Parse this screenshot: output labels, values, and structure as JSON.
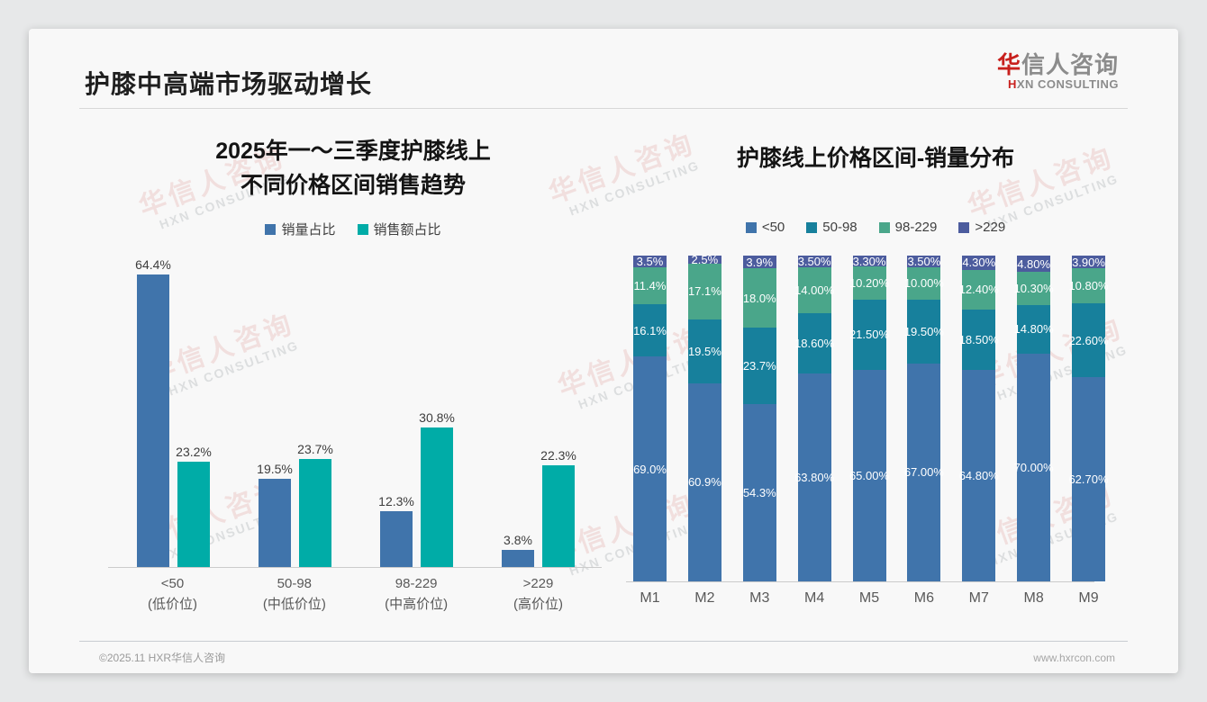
{
  "page": {
    "title": "护膝中高端市场驱动增长",
    "logo": {
      "cn_first": "华",
      "cn_rest": "信人咨询",
      "en_first": "H",
      "en_rest": "XN CONSULTING"
    },
    "watermark": {
      "cn": "华信人咨询",
      "en": "HXN CONSULTING"
    },
    "footer": {
      "copyright": "©2025.11 HXR华信人咨询",
      "website": "www.hxrcon.com"
    }
  },
  "colors": {
    "volume_blue": "#4074ab",
    "amount_teal": "#00aca7",
    "seg_lt50": "#4074ab",
    "seg_50_98": "#17809c",
    "seg_98_229": "#4aa68a",
    "seg_gt229": "#4c5c9e",
    "axis_gray": "#cbcbcb"
  },
  "chart_data": [
    {
      "type": "bar",
      "title": "2025年一～三季度护膝线上 不同价格区间销售趋势",
      "title_lines": [
        "2025年一～三季度护膝线上",
        "不同价格区间销售趋势"
      ],
      "categories": [
        "<50",
        "50-98",
        "98-229",
        ">229"
      ],
      "category_sublabels": [
        "(低价位)",
        "(中低价位)",
        "(中高价位)",
        "(高价位)"
      ],
      "unit": "%",
      "ylim": [
        0,
        70
      ],
      "grid": false,
      "legend_position": "top",
      "series": [
        {
          "name": "销量占比",
          "color": "#4074ab",
          "values": [
            64.4,
            19.5,
            12.3,
            3.8
          ],
          "labels": [
            "64.4%",
            "19.5%",
            "12.3%",
            "3.8%"
          ]
        },
        {
          "name": "销售额占比",
          "color": "#00aca7",
          "values": [
            23.2,
            23.7,
            30.8,
            22.3
          ],
          "labels": [
            "23.2%",
            "23.7%",
            "30.8%",
            "22.3%"
          ]
        }
      ]
    },
    {
      "type": "stacked-bar",
      "title": "护膝线上价格区间-销量分布",
      "categories": [
        "M1",
        "M2",
        "M3",
        "M4",
        "M5",
        "M6",
        "M7",
        "M8",
        "M9"
      ],
      "unit": "%",
      "ylim": [
        0,
        100
      ],
      "grid": false,
      "legend_position": "top",
      "series": [
        {
          "name": "<50",
          "color": "#4074ab",
          "values": [
            69.0,
            60.9,
            54.3,
            63.8,
            65.0,
            67.0,
            64.8,
            70.0,
            62.7
          ],
          "labels": [
            "69.0%",
            "60.9%",
            "54.3%",
            "63.80%",
            "65.00%",
            "67.00%",
            "64.80%",
            "70.00%",
            "62.70%"
          ]
        },
        {
          "name": "50-98",
          "color": "#17809c",
          "values": [
            16.1,
            19.5,
            23.7,
            18.6,
            21.5,
            19.5,
            18.5,
            14.8,
            22.6
          ],
          "labels": [
            "16.1%",
            "19.5%",
            "23.7%",
            "18.60%",
            "21.50%",
            "19.50%",
            "18.50%",
            "14.80%",
            "22.60%"
          ]
        },
        {
          "name": "98-229",
          "color": "#4aa68a",
          "values": [
            11.4,
            17.1,
            18.0,
            14.0,
            10.2,
            10.0,
            12.4,
            10.3,
            10.8
          ],
          "labels": [
            "11.4%",
            "17.1%",
            "18.0%",
            "14.00%",
            "10.20%",
            "10.00%",
            "12.40%",
            "10.30%",
            "10.80%"
          ]
        },
        {
          "name": ">229",
          "color": "#4c5c9e",
          "values": [
            3.5,
            2.5,
            3.9,
            3.5,
            3.3,
            3.5,
            4.3,
            4.8,
            3.9
          ],
          "labels": [
            "3.5%",
            "2.5%",
            "3.9%",
            "3.50%",
            "3.30%",
            "3.50%",
            "4.30%",
            "4.80%",
            "3.90%"
          ]
        }
      ]
    }
  ]
}
